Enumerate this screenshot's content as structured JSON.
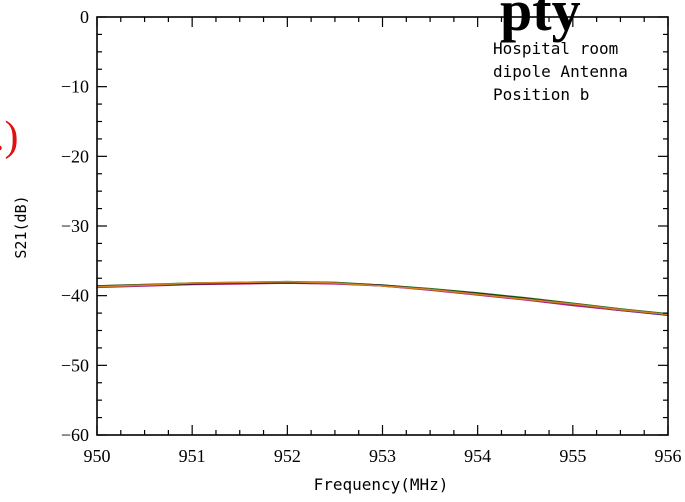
{
  "fragments": {
    "top_title_glyphs": "pty",
    "left_label_glyph": ".)"
  },
  "colors": {
    "frag_red": "#e01010",
    "axis": "#000000"
  },
  "chart_data": {
    "type": "line",
    "xlabel": "Frequency(MHz)",
    "ylabel": "S21(dB)",
    "xlim": [
      950,
      956
    ],
    "ylim": [
      -60,
      0
    ],
    "x_ticks": [
      950,
      951,
      952,
      953,
      954,
      955,
      956
    ],
    "y_ticks": [
      0,
      -10,
      -20,
      -30,
      -40,
      -50,
      -60
    ],
    "x_tick_labels": [
      "950",
      "951",
      "952",
      "953",
      "954",
      "955",
      "956"
    ],
    "y_tick_labels": [
      "0",
      "−10",
      "−20",
      "−30",
      "−40",
      "−50",
      "−60"
    ],
    "annotation": [
      "Hospital room",
      "dipole Antenna",
      "Position b"
    ],
    "grid": false,
    "x": [
      950,
      950.5,
      951,
      951.5,
      952,
      952.5,
      953,
      953.5,
      954,
      954.5,
      955,
      955.5,
      956
    ],
    "series": [
      {
        "color": "#1a7a1a",
        "values": [
          -38.6,
          -38.4,
          -38.2,
          -38.1,
          -38.0,
          -38.1,
          -38.5,
          -39.0,
          -39.6,
          -40.3,
          -41.1,
          -41.9,
          -42.6
        ]
      },
      {
        "color": "#1a1ab0",
        "values": [
          -38.7,
          -38.5,
          -38.3,
          -38.2,
          -38.1,
          -38.2,
          -38.6,
          -39.1,
          -39.8,
          -40.5,
          -41.3,
          -42.1,
          -42.8
        ]
      },
      {
        "color": "#b01a8a",
        "values": [
          -38.8,
          -38.6,
          -38.4,
          -38.3,
          -38.2,
          -38.3,
          -38.6,
          -39.2,
          -39.9,
          -40.6,
          -41.4,
          -42.1,
          -42.7
        ]
      },
      {
        "color": "#202020",
        "values": [
          -38.6,
          -38.5,
          -38.3,
          -38.2,
          -38.1,
          -38.2,
          -38.5,
          -39.1,
          -39.7,
          -40.4,
          -41.2,
          -42.0,
          -42.7
        ]
      },
      {
        "color": "#d08020",
        "values": [
          -38.7,
          -38.5,
          -38.2,
          -38.1,
          -38.0,
          -38.2,
          -38.6,
          -39.1,
          -39.8,
          -40.5,
          -41.2,
          -42.0,
          -42.7
        ]
      }
    ]
  }
}
